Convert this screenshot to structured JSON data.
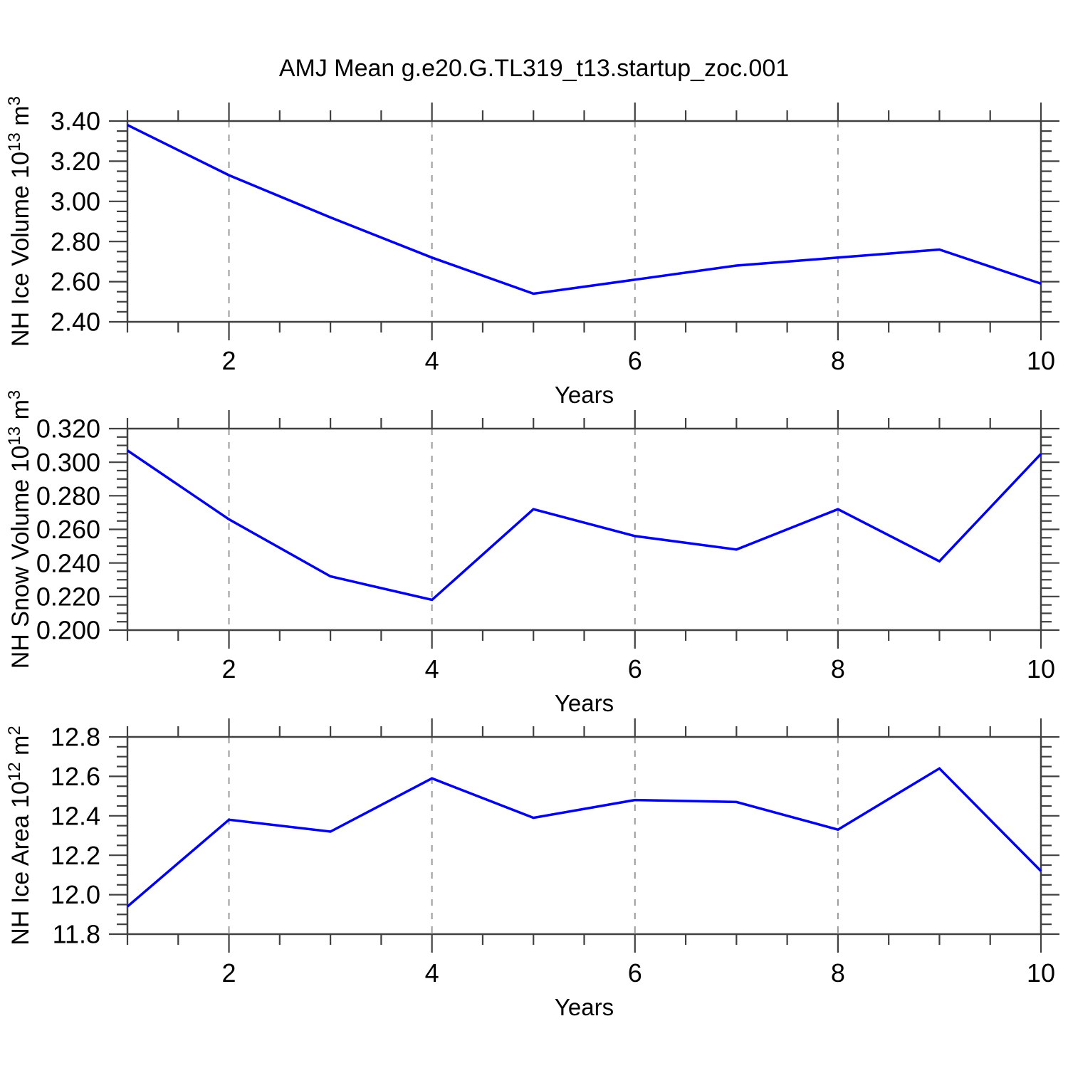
{
  "title": "AMJ Mean g.e20.G.TL319_t13.startup_zoc.001",
  "colors": {
    "line": "#0000ee",
    "frame": "#404040",
    "grid": "#9a9a9a",
    "text": "#000000",
    "background": "#ffffff"
  },
  "chart_data": [
    {
      "type": "line",
      "id": "nh-ice-volume",
      "ylabel": "NH Ice Volume 10^13 m^3",
      "ylabel_rich": [
        {
          "text": "NH Ice Volume 10"
        },
        {
          "text": "13",
          "sup": true
        },
        {
          "text": " m"
        },
        {
          "text": "3",
          "sup": true
        }
      ],
      "xlabel": "Years",
      "x": [
        1,
        2,
        3,
        4,
        5,
        6,
        7,
        8,
        9,
        10
      ],
      "values": [
        3.38,
        3.13,
        2.92,
        2.72,
        2.54,
        2.61,
        2.68,
        2.72,
        2.76,
        2.59
      ],
      "xlim": [
        1,
        10
      ],
      "ylim": [
        2.4,
        3.4
      ],
      "xticks": [
        2,
        4,
        6,
        8,
        10
      ],
      "xtick_labels": [
        "2",
        "4",
        "6",
        "8",
        "10"
      ],
      "xminor_step": 0.5,
      "ytick_values": [
        3.4,
        3.2,
        3.0,
        2.8,
        2.6,
        2.4
      ],
      "ytick_labels": [
        "3.40",
        "3.20",
        "3.00",
        "2.80",
        "2.60",
        "2.40"
      ],
      "yminor_step": 0.05,
      "grid_x": [
        2,
        4,
        6,
        8
      ],
      "grid": "vertical-dashed",
      "legend": "none"
    },
    {
      "type": "line",
      "id": "nh-snow-volume",
      "ylabel": "NH Snow Volume 10^13 m^3",
      "ylabel_rich": [
        {
          "text": "NH Snow Volume 10"
        },
        {
          "text": "13",
          "sup": true
        },
        {
          "text": " m"
        },
        {
          "text": "3",
          "sup": true
        }
      ],
      "xlabel": "Years",
      "x": [
        1,
        2,
        3,
        4,
        5,
        6,
        7,
        8,
        9,
        10
      ],
      "values": [
        0.307,
        0.266,
        0.232,
        0.218,
        0.272,
        0.256,
        0.248,
        0.272,
        0.241,
        0.305
      ],
      "xlim": [
        1,
        10
      ],
      "ylim": [
        0.2,
        0.32
      ],
      "xticks": [
        2,
        4,
        6,
        8,
        10
      ],
      "xtick_labels": [
        "2",
        "4",
        "6",
        "8",
        "10"
      ],
      "xminor_step": 0.5,
      "ytick_values": [
        0.32,
        0.3,
        0.28,
        0.26,
        0.24,
        0.22,
        0.2
      ],
      "ytick_labels": [
        "0.320",
        "0.300",
        "0.280",
        "0.260",
        "0.240",
        "0.220",
        "0.200"
      ],
      "yminor_step": 0.005,
      "grid_x": [
        2,
        4,
        6,
        8
      ],
      "grid": "vertical-dashed",
      "legend": "none"
    },
    {
      "type": "line",
      "id": "nh-ice-area",
      "ylabel": "NH Ice Area 10^12 m^2",
      "ylabel_rich": [
        {
          "text": "NH Ice Area 10"
        },
        {
          "text": "12",
          "sup": true
        },
        {
          "text": " m"
        },
        {
          "text": "2",
          "sup": true
        }
      ],
      "xlabel": "Years",
      "x": [
        1,
        2,
        3,
        4,
        5,
        6,
        7,
        8,
        9,
        10
      ],
      "values": [
        11.94,
        12.38,
        12.32,
        12.59,
        12.39,
        12.48,
        12.47,
        12.33,
        12.64,
        12.12
      ],
      "xlim": [
        1,
        10
      ],
      "ylim": [
        11.8,
        12.8
      ],
      "xticks": [
        2,
        4,
        6,
        8,
        10
      ],
      "xtick_labels": [
        "2",
        "4",
        "6",
        "8",
        "10"
      ],
      "xminor_step": 0.5,
      "ytick_values": [
        12.8,
        12.6,
        12.4,
        12.2,
        12.0,
        11.8
      ],
      "ytick_labels": [
        "12.8",
        "12.6",
        "12.4",
        "12.2",
        "12.0",
        "11.8"
      ],
      "yminor_step": 0.05,
      "grid_x": [
        2,
        4,
        6,
        8
      ],
      "grid": "vertical-dashed",
      "legend": "none"
    }
  ]
}
